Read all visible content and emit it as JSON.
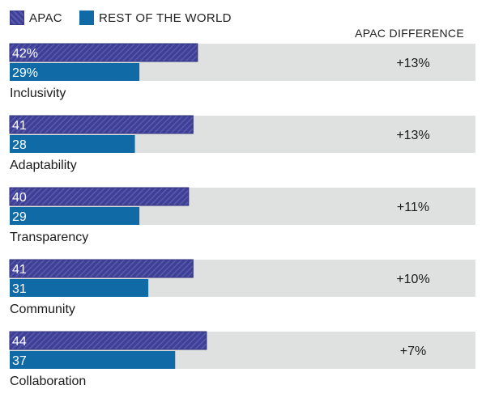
{
  "legend": {
    "apac_label": "APAC",
    "row_label": "REST OF THE WORLD"
  },
  "difference_header": "APAC DIFFERENCE",
  "colors": {
    "apac": "#3e3f95",
    "apac_stripe": "#585ab0",
    "rest_of_world": "#0f6aa6",
    "track": "#dfe1e1"
  },
  "chart_data": {
    "type": "bar",
    "orientation": "horizontal",
    "categories": [
      "Inclusivity",
      "Adaptability",
      "Transparency",
      "Community",
      "Collaboration"
    ],
    "series": [
      {
        "name": "APAC",
        "values": [
          42,
          41,
          40,
          41,
          44
        ],
        "labels": [
          "42%",
          "41",
          "40",
          "41",
          "44"
        ]
      },
      {
        "name": "REST OF THE WORLD",
        "values": [
          29,
          28,
          29,
          31,
          37
        ],
        "labels": [
          "29%",
          "28",
          "29",
          "31",
          "37"
        ]
      }
    ],
    "differences": [
      "+13%",
      "+13%",
      "+11%",
      "+10%",
      "+7%"
    ],
    "xlim": [
      0,
      100
    ],
    "grid": false,
    "legend_position": "top-left"
  }
}
